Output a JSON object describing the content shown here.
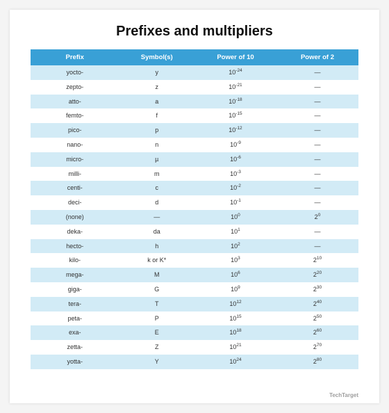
{
  "title": "Prefixes and multipliers",
  "title_fontsize": 20,
  "table": {
    "header_bg": "#39a0d6",
    "header_color": "#ffffff",
    "row_alt_bg": "#d2ebf6",
    "row_bg": "#ffffff",
    "columns": [
      "Prefix",
      "Symbol(s)",
      "Power of 10",
      "Power of 2"
    ],
    "col_widths": [
      "27%",
      "23%",
      "25%",
      "25%"
    ],
    "rows": [
      {
        "prefix": "yocto-",
        "symbol": "y",
        "p10_base": "10",
        "p10_exp": "-24",
        "p2_base": "—",
        "p2_exp": ""
      },
      {
        "prefix": "zepto-",
        "symbol": "z",
        "p10_base": "10",
        "p10_exp": "-21",
        "p2_base": "—",
        "p2_exp": ""
      },
      {
        "prefix": "atto-",
        "symbol": "a",
        "p10_base": "10",
        "p10_exp": "-18",
        "p2_base": "—",
        "p2_exp": ""
      },
      {
        "prefix": "femto-",
        "symbol": "f",
        "p10_base": "10",
        "p10_exp": "-15",
        "p2_base": "—",
        "p2_exp": ""
      },
      {
        "prefix": "pico-",
        "symbol": "p",
        "p10_base": "10",
        "p10_exp": "-12",
        "p2_base": "—",
        "p2_exp": ""
      },
      {
        "prefix": "nano-",
        "symbol": "n",
        "p10_base": "10",
        "p10_exp": "-9",
        "p2_base": "—",
        "p2_exp": ""
      },
      {
        "prefix": "micro-",
        "symbol": "µ",
        "p10_base": "10",
        "p10_exp": "-6",
        "p2_base": "—",
        "p2_exp": ""
      },
      {
        "prefix": "milli-",
        "symbol": "m",
        "p10_base": "10",
        "p10_exp": "-3",
        "p2_base": "—",
        "p2_exp": ""
      },
      {
        "prefix": "centi-",
        "symbol": "c",
        "p10_base": "10",
        "p10_exp": "-2",
        "p2_base": "—",
        "p2_exp": ""
      },
      {
        "prefix": "deci-",
        "symbol": "d",
        "p10_base": "10",
        "p10_exp": "-1",
        "p2_base": "—",
        "p2_exp": ""
      },
      {
        "prefix": "(none)",
        "symbol": "—",
        "p10_base": "10",
        "p10_exp": "0",
        "p2_base": "2",
        "p2_exp": "0"
      },
      {
        "prefix": "deka-",
        "symbol": "da",
        "p10_base": "10",
        "p10_exp": "1",
        "p2_base": "—",
        "p2_exp": ""
      },
      {
        "prefix": "hecto-",
        "symbol": "h",
        "p10_base": "10",
        "p10_exp": "2",
        "p2_base": "—",
        "p2_exp": ""
      },
      {
        "prefix": "kilo-",
        "symbol": "k or K*",
        "p10_base": "10",
        "p10_exp": "3",
        "p2_base": "2",
        "p2_exp": "10"
      },
      {
        "prefix": "mega-",
        "symbol": "M",
        "p10_base": "10",
        "p10_exp": "6",
        "p2_base": "2",
        "p2_exp": "20"
      },
      {
        "prefix": "giga-",
        "symbol": "G",
        "p10_base": "10",
        "p10_exp": "9",
        "p2_base": "2",
        "p2_exp": "30"
      },
      {
        "prefix": "tera-",
        "symbol": "T",
        "p10_base": "10",
        "p10_exp": "12",
        "p2_base": "2",
        "p2_exp": "40"
      },
      {
        "prefix": "peta-",
        "symbol": "P",
        "p10_base": "10",
        "p10_exp": "15",
        "p2_base": "2",
        "p2_exp": "50"
      },
      {
        "prefix": "exa-",
        "symbol": "E",
        "p10_base": "10",
        "p10_exp": "18",
        "p2_base": "2",
        "p2_exp": "60"
      },
      {
        "prefix": "zetta-",
        "symbol": "Z",
        "p10_base": "10",
        "p10_exp": "21",
        "p2_base": "2",
        "p2_exp": "70"
      },
      {
        "prefix": "yotta-",
        "symbol": "Y",
        "p10_base": "10",
        "p10_exp": "24",
        "p2_base": "2",
        "p2_exp": "80"
      }
    ]
  },
  "footer": {
    "left": "",
    "right_small": "",
    "right_brand": "TechTarget"
  }
}
